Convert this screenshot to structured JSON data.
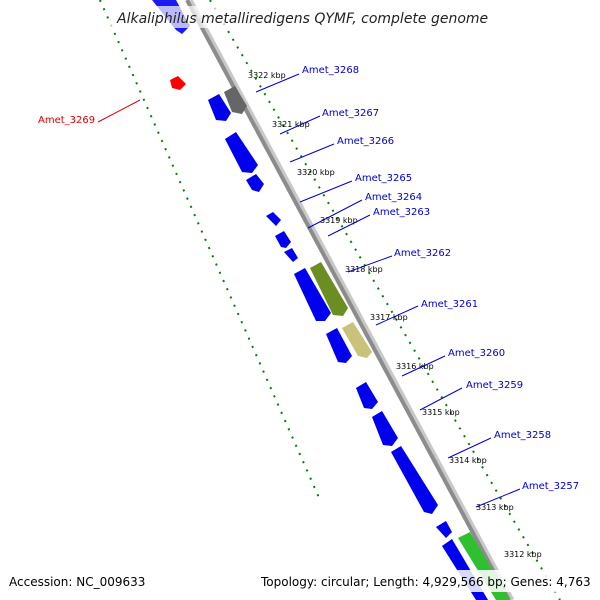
{
  "title": "Alkaliphilus metalliredigens QYMF, complete genome",
  "footer": {
    "accession": "Accession: NC_009633",
    "topology": "Topology: circular; Length: 4,929,566 bp; Genes: 4,763"
  },
  "colors": {
    "backbone": "#8c8c8c",
    "forward_gene": "#0000ee",
    "reverse_gene": "#ff0000",
    "label_forward": "#0000cc",
    "label_reverse": "#dd0000",
    "dotted_line": "#008000",
    "olive": "#6b8e23",
    "khaki": "#c8c27a",
    "grey_gene": "#666666",
    "green_gene": "#2fbf2f"
  },
  "kbp_ticks": [
    "3322 kbp",
    "3321 kbp",
    "3320 kbp",
    "3319 kbp",
    "3318 kbp",
    "3317 kbp",
    "3316 kbp",
    "3315 kbp",
    "3314 kbp",
    "3313 kbp",
    "3312 kbp"
  ],
  "gene_labels": [
    {
      "text": "Amet_3269"
    },
    {
      "text": "Amet_3268"
    },
    {
      "text": "Amet_3267"
    },
    {
      "text": "Amet_3266"
    },
    {
      "text": "Amet_3265"
    },
    {
      "text": "Amet_3264"
    },
    {
      "text": "Amet_3263"
    },
    {
      "text": "Amet_3262"
    },
    {
      "text": "Amet_3261"
    },
    {
      "text": "Amet_3260"
    },
    {
      "text": "Amet_3259"
    },
    {
      "text": "Amet_3258"
    },
    {
      "text": "Amet_3257"
    }
  ]
}
